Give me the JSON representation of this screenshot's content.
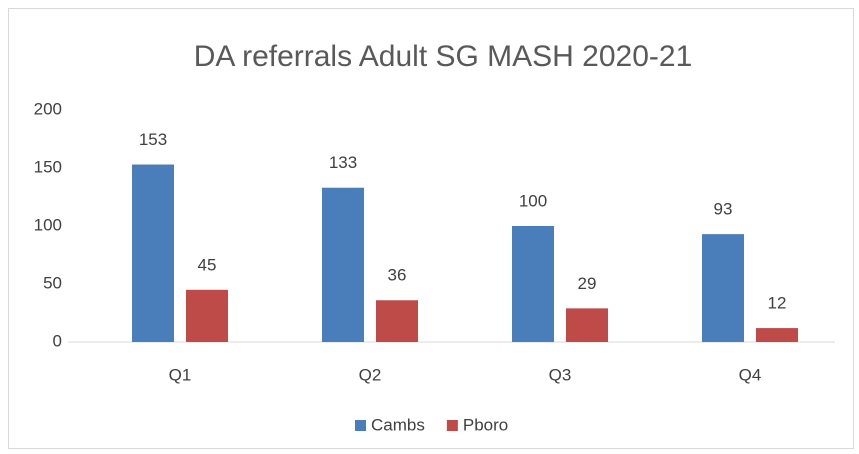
{
  "chart_data": {
    "type": "bar",
    "title": "DA referrals Adult SG MASH 2020-21",
    "categories": [
      "Q1",
      "Q2",
      "Q3",
      "Q4"
    ],
    "series": [
      {
        "name": "Cambs",
        "color": "#4a7ebb",
        "values": [
          153,
          133,
          100,
          93
        ]
      },
      {
        "name": "Pboro",
        "color": "#be4b48",
        "values": [
          45,
          36,
          29,
          12
        ]
      }
    ],
    "ylim": [
      0,
      200
    ],
    "yticks": [
      0,
      50,
      100,
      150,
      200
    ],
    "grid": false,
    "legend": "bottom"
  }
}
